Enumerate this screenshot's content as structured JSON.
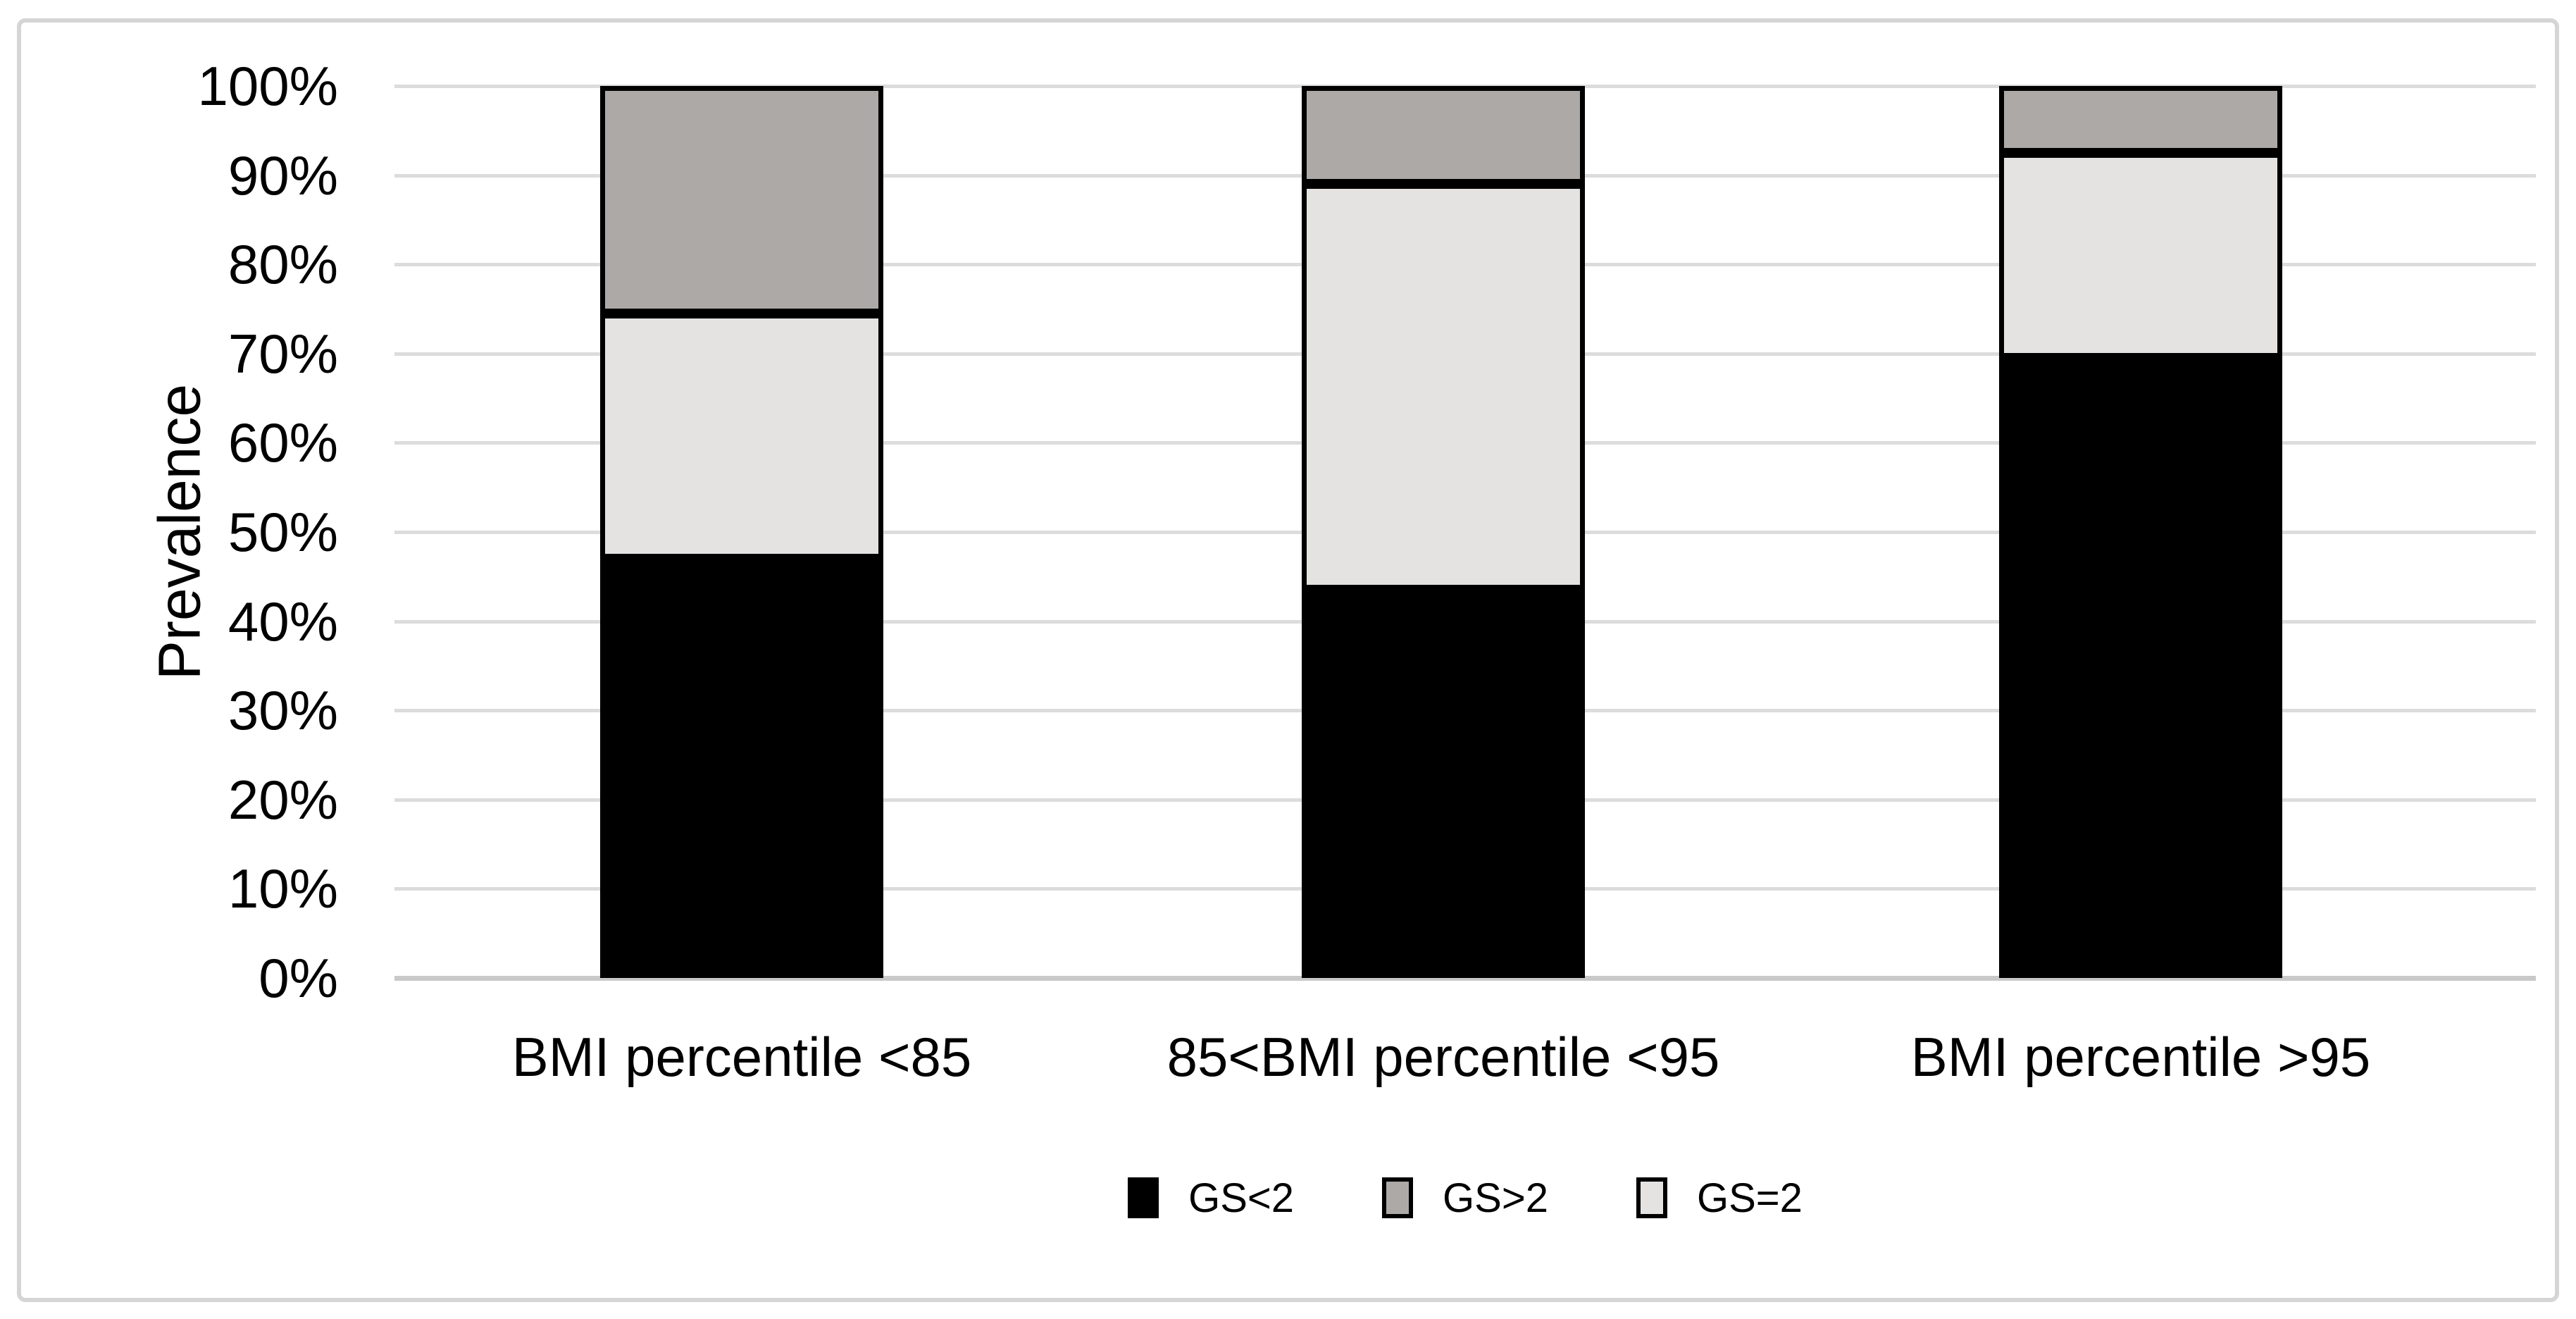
{
  "chart_data": {
    "type": "bar",
    "stacked": true,
    "title": "",
    "xlabel": "",
    "ylabel": "Prevalence",
    "ylim": [
      0,
      100
    ],
    "grid": "horizontal",
    "legend_position": "bottom-center",
    "yticks": [
      "0%",
      "10%",
      "20%",
      "30%",
      "40%",
      "50%",
      "60%",
      "70%",
      "80%",
      "90%",
      "100%"
    ],
    "ytick_values": [
      0,
      10,
      20,
      30,
      40,
      50,
      60,
      70,
      80,
      90,
      100
    ],
    "categories": [
      "BMI percentile <85",
      "85<BMI percentile <95",
      "BMI percentile >95"
    ],
    "series": [
      {
        "name": "GS<2",
        "key": "gs-lt-2",
        "color": "#000000",
        "outlined": false,
        "values": [
          47.0,
          43.5,
          69.5
        ]
      },
      {
        "name": "GS=2",
        "key": "gs-eq-2",
        "color": "#E4E3E2",
        "outlined": true,
        "values": [
          27.5,
          45.5,
          23.0
        ]
      },
      {
        "name": "GS>2",
        "key": "gs-gt-2",
        "color": "#ACA9A7",
        "outlined": true,
        "values": [
          25.5,
          11.0,
          7.5
        ]
      }
    ],
    "legend_order": [
      "GS<2",
      "GS>2",
      "GS=2"
    ],
    "colors": {
      "background": "#FFFFFF",
      "text": "#000000",
      "gridline": "#DCDCDC",
      "baseline": "#C9C9C9",
      "frame_border": "#D5D5D5",
      "segment_outline": "#000000"
    }
  }
}
